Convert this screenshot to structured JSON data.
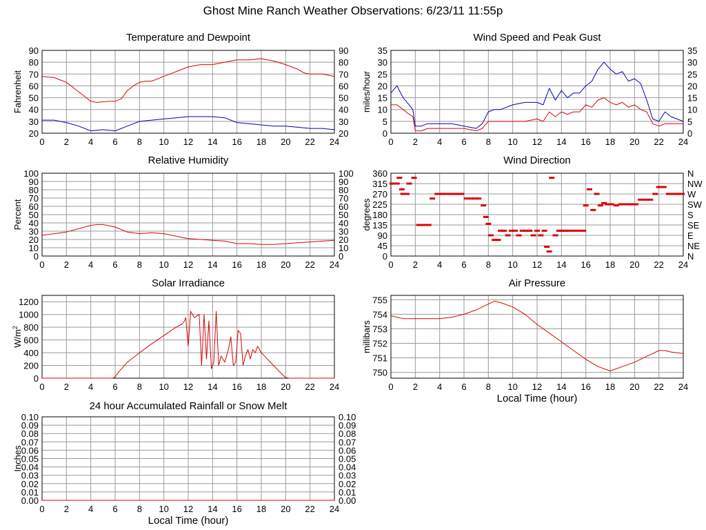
{
  "page_title": "Ghost Mine Ranch Weather Observations: 6/23/11 11:55p",
  "colors": {
    "red": "#dd0000",
    "blue": "#0000bb",
    "grid": "#999999",
    "axis": "#000000"
  },
  "chart_data": [
    {
      "id": "temperature",
      "type": "line",
      "title": "Temperature and Dewpoint",
      "xlabel": "",
      "ylabel": "Fahrenheit",
      "xlim": [
        0,
        24
      ],
      "ylim": [
        20,
        90
      ],
      "xticks": [
        0,
        2,
        4,
        6,
        8,
        10,
        12,
        14,
        16,
        18,
        20,
        22,
        24
      ],
      "yticks": [
        20,
        30,
        40,
        50,
        60,
        70,
        80,
        90
      ],
      "right_axis": true,
      "series": [
        {
          "name": "Temperature",
          "color": "#dd0000",
          "x": [
            0,
            0.5,
            1,
            1.5,
            2,
            2.5,
            3,
            3.5,
            4,
            4.5,
            5,
            5.5,
            6,
            6.5,
            7,
            7.5,
            8,
            8.5,
            9,
            10,
            11,
            12,
            13,
            14,
            15,
            16,
            17,
            18,
            19,
            20,
            21,
            21.5,
            22,
            23,
            24
          ],
          "y": [
            68,
            67.5,
            67,
            65,
            63,
            59,
            55,
            51,
            47,
            46,
            46.5,
            47,
            47,
            49,
            56,
            60,
            63,
            64,
            64,
            68,
            72,
            76,
            78,
            78,
            80,
            82,
            82,
            83,
            81,
            78,
            74,
            71,
            70,
            70,
            68
          ]
        },
        {
          "name": "Dewpoint",
          "color": "#0000bb",
          "x": [
            0,
            1,
            2,
            3,
            4,
            5,
            6,
            7,
            8,
            9,
            10,
            11,
            12,
            13,
            14,
            15,
            16,
            17,
            18,
            19,
            20,
            21,
            22,
            23,
            24
          ],
          "y": [
            31,
            31,
            29,
            26,
            22,
            23,
            22,
            26,
            30,
            31,
            32,
            33,
            34,
            34,
            34,
            33,
            29,
            28,
            27,
            26,
            26,
            25,
            24,
            24,
            23
          ]
        }
      ]
    },
    {
      "id": "wind",
      "type": "line",
      "title": "Wind Speed and Peak Gust",
      "xlabel": "",
      "ylabel": "miles/hour",
      "xlim": [
        0,
        24
      ],
      "ylim": [
        0,
        35
      ],
      "xticks": [
        0,
        2,
        4,
        6,
        8,
        10,
        12,
        14,
        16,
        18,
        20,
        22,
        24
      ],
      "yticks": [
        0,
        5,
        10,
        15,
        20,
        25,
        30,
        35
      ],
      "right_axis": true,
      "series": [
        {
          "name": "Peak Gust",
          "color": "#0000bb",
          "x": [
            0,
            0.5,
            1,
            1.5,
            1.8,
            2,
            2.5,
            3,
            4,
            5,
            6,
            7,
            7.5,
            8,
            8.5,
            9,
            10,
            11,
            12,
            12.5,
            13,
            13.5,
            14,
            14.5,
            15,
            15.5,
            16,
            16.5,
            17,
            17.5,
            18,
            18.5,
            19,
            19.5,
            20,
            20.5,
            21,
            21.5,
            22,
            22.5,
            23,
            24
          ],
          "y": [
            17,
            20,
            15,
            12,
            10,
            3,
            3,
            4,
            4,
            4,
            3,
            2,
            4,
            9,
            10,
            10,
            12,
            13,
            13,
            12,
            19,
            14,
            18,
            15,
            17,
            17,
            20,
            22,
            27,
            30,
            27,
            25,
            26,
            22,
            23,
            21,
            14,
            6,
            5,
            9,
            7,
            5
          ]
        },
        {
          "name": "Wind Speed",
          "color": "#dd0000",
          "x": [
            0,
            0.5,
            1,
            1.5,
            1.8,
            2,
            2.5,
            3,
            4,
            5,
            6,
            7,
            7.5,
            8,
            8.5,
            9,
            10,
            11,
            12,
            12.5,
            13,
            13.5,
            14,
            14.5,
            15,
            15.5,
            16,
            16.5,
            17,
            17.5,
            18,
            18.5,
            19,
            19.5,
            20,
            20.5,
            21,
            21.5,
            22,
            22.5,
            23,
            24
          ],
          "y": [
            12,
            12,
            10,
            8,
            7,
            1,
            1,
            2,
            2,
            2,
            2,
            1,
            2,
            5,
            5,
            5,
            5,
            5,
            6,
            5,
            9,
            7,
            9,
            8,
            9,
            9,
            12,
            11,
            14,
            15,
            13,
            12,
            13,
            11,
            12,
            10,
            9,
            4,
            3,
            4,
            4,
            4
          ]
        }
      ]
    },
    {
      "id": "humidity",
      "type": "line",
      "title": "Relative Humidity",
      "xlabel": "",
      "ylabel": "Percent",
      "xlim": [
        0,
        24
      ],
      "ylim": [
        0,
        100
      ],
      "xticks": [
        0,
        2,
        4,
        6,
        8,
        10,
        12,
        14,
        16,
        18,
        20,
        22,
        24
      ],
      "yticks": [
        0,
        10,
        20,
        30,
        40,
        50,
        60,
        70,
        80,
        90,
        100
      ],
      "right_axis": true,
      "series": [
        {
          "name": "Relative Humidity",
          "color": "#dd0000",
          "x": [
            0,
            1,
            2,
            3,
            4,
            4.5,
            5,
            6,
            7,
            8,
            9,
            10,
            11,
            12,
            13,
            14,
            15,
            16,
            17,
            18,
            19,
            20,
            21,
            22,
            23,
            24
          ],
          "y": [
            25,
            27,
            29,
            33,
            37,
            38,
            38,
            35,
            29,
            27,
            28,
            27,
            24,
            21,
            20,
            19,
            18,
            15,
            15,
            14,
            14,
            15,
            16,
            17,
            18,
            19
          ]
        }
      ]
    },
    {
      "id": "direction",
      "type": "scatter",
      "title": "Wind Direction",
      "xlabel": "",
      "ylabel": "degrees",
      "xlim": [
        0,
        24
      ],
      "ylim": [
        0,
        360
      ],
      "xticks": [
        0,
        2,
        4,
        6,
        8,
        10,
        12,
        14,
        16,
        18,
        20,
        22,
        24
      ],
      "yticks": [
        0,
        45,
        90,
        135,
        180,
        225,
        270,
        315,
        360
      ],
      "right_labels": [
        "N",
        "NE",
        "E",
        "SE",
        "S",
        "SW",
        "W",
        "NW",
        "N"
      ],
      "series": [
        {
          "name": "Wind Direction",
          "color": "#dd0000",
          "x": [
            0.1,
            0.3,
            0.5,
            0.7,
            0.9,
            1.0,
            1.3,
            1.5,
            1.9,
            2.3,
            2.7,
            3.1,
            3.4,
            3.8,
            4.2,
            4.6,
            5.0,
            5.4,
            5.8,
            6.2,
            6.6,
            6.9,
            7.2,
            7.6,
            7.8,
            8.0,
            8.2,
            8.5,
            8.8,
            9.0,
            9.3,
            9.6,
            9.9,
            10.2,
            10.5,
            10.8,
            11.1,
            11.4,
            11.7,
            12.0,
            12.3,
            12.6,
            12.8,
            13.0,
            13.2,
            13.5,
            13.8,
            14.0,
            14.3,
            14.6,
            15.0,
            15.4,
            15.8,
            16.0,
            16.3,
            16.6,
            16.9,
            17.2,
            17.5,
            17.8,
            18.1,
            18.5,
            18.9,
            19.3,
            19.7,
            20.1,
            20.5,
            20.9,
            21.3,
            21.7,
            22.0,
            22.4,
            22.8,
            23.2,
            23.6,
            23.9
          ],
          "y": [
            315,
            315,
            315,
            340,
            290,
            270,
            270,
            315,
            340,
            135,
            135,
            135,
            250,
            270,
            270,
            270,
            270,
            270,
            270,
            250,
            250,
            250,
            250,
            220,
            170,
            140,
            90,
            70,
            70,
            110,
            110,
            90,
            110,
            110,
            90,
            110,
            110,
            110,
            90,
            110,
            90,
            110,
            40,
            20,
            340,
            90,
            110,
            110,
            110,
            110,
            110,
            110,
            110,
            220,
            290,
            200,
            270,
            220,
            230,
            225,
            225,
            220,
            225,
            225,
            225,
            225,
            245,
            245,
            245,
            270,
            300,
            300,
            270,
            270,
            270,
            270
          ]
        }
      ]
    },
    {
      "id": "solar",
      "type": "line",
      "title": "Solar Irradiance",
      "xlabel": "",
      "ylabel": "W/m2",
      "xlim": [
        0,
        24
      ],
      "ylim": [
        0,
        1300
      ],
      "xticks": [
        0,
        2,
        4,
        6,
        8,
        10,
        12,
        14,
        16,
        18,
        20,
        22,
        24
      ],
      "yticks": [
        0,
        200,
        400,
        600,
        800,
        1000,
        1200
      ],
      "right_axis": false,
      "series": [
        {
          "name": "Solar Irradiance",
          "color": "#dd0000",
          "x": [
            0,
            5,
            5.8,
            6,
            6.3,
            7,
            8,
            9,
            10,
            11,
            11.5,
            11.7,
            11.8,
            12,
            12.2,
            12.5,
            12.9,
            13.1,
            13.3,
            13.5,
            13.7,
            13.9,
            14.1,
            14.3,
            14.5,
            14.7,
            15,
            15.3,
            15.5,
            15.7,
            15.9,
            16.1,
            16.3,
            16.5,
            16.7,
            16.9,
            17.1,
            17.3,
            17.5,
            17.7,
            18,
            18.5,
            19,
            19.5,
            20,
            20.3,
            21,
            24
          ],
          "y": [
            0,
            0,
            0,
            20,
            100,
            250,
            400,
            540,
            670,
            800,
            850,
            900,
            950,
            500,
            1050,
            950,
            1000,
            200,
            1000,
            300,
            900,
            150,
            250,
            1050,
            200,
            350,
            250,
            450,
            650,
            200,
            250,
            750,
            700,
            200,
            350,
            450,
            300,
            450,
            400,
            500,
            400,
            300,
            200,
            100,
            10,
            0,
            0,
            0
          ]
        }
      ]
    },
    {
      "id": "pressure",
      "type": "line",
      "title": "Air Pressure",
      "xlabel": "Local Time (hour)",
      "ylabel": "millibars",
      "xlim": [
        0,
        24
      ],
      "ylim": [
        749.6,
        755.3
      ],
      "xticks": [
        0,
        2,
        4,
        6,
        8,
        10,
        12,
        14,
        16,
        18,
        20,
        22,
        24
      ],
      "yticks": [
        750,
        751,
        752,
        753,
        754,
        755
      ],
      "right_axis": false,
      "series": [
        {
          "name": "Air Pressure",
          "color": "#dd0000",
          "x": [
            0,
            1,
            2,
            3,
            4,
            5,
            6,
            7,
            8,
            8.5,
            9,
            10,
            11,
            12,
            13,
            14,
            15,
            16,
            17,
            18,
            19,
            20,
            21,
            22,
            22.5,
            23,
            24
          ],
          "y": [
            753.9,
            753.7,
            753.7,
            753.7,
            753.7,
            753.8,
            754.0,
            754.3,
            754.7,
            754.9,
            754.8,
            754.5,
            754.0,
            753.3,
            752.7,
            752.1,
            751.5,
            750.9,
            750.4,
            750.1,
            750.4,
            750.7,
            751.1,
            751.5,
            751.5,
            751.4,
            751.3
          ]
        }
      ]
    },
    {
      "id": "rain",
      "type": "line",
      "title": "24 hour Accumulated Rainfall or Snow Melt",
      "xlabel": "Local Time (hour)",
      "ylabel": "Inches",
      "xlim": [
        0,
        24
      ],
      "ylim": [
        0,
        0.1
      ],
      "xticks": [
        0,
        2,
        4,
        6,
        8,
        10,
        12,
        14,
        16,
        18,
        20,
        22,
        24
      ],
      "yticks": [
        "0.00",
        "0.01",
        "0.02",
        "0.03",
        "0.04",
        "0.05",
        "0.06",
        "0.07",
        "0.08",
        "0.09",
        "0.10"
      ],
      "right_axis": true,
      "series": [
        {
          "name": "Rainfall",
          "color": "#dd0000",
          "x": [
            0,
            24
          ],
          "y": [
            0,
            0
          ]
        }
      ]
    }
  ]
}
